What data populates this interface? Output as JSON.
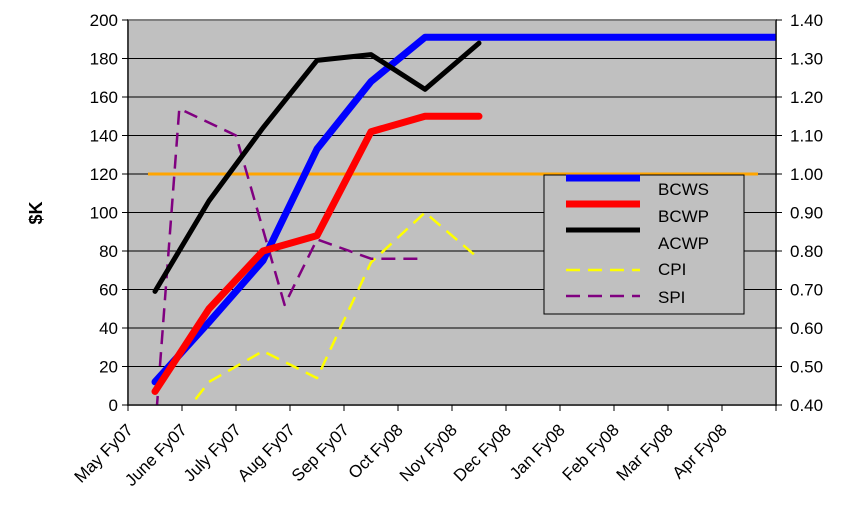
{
  "chart_data": {
    "type": "line",
    "title": "",
    "xlabel": "",
    "ylabel": "$K",
    "ylim": [
      0,
      200
    ],
    "y_ticks": [
      "0",
      "20",
      "40",
      "60",
      "80",
      "100",
      "120",
      "140",
      "160",
      "180",
      "200"
    ],
    "y2lim": [
      0.4,
      1.4
    ],
    "y2_ticks": [
      "0.40",
      "0.50",
      "0.60",
      "0.70",
      "0.80",
      "0.90",
      "1.00",
      "1.10",
      "1.20",
      "1.30",
      "1.40"
    ],
    "categories": [
      "May Fy07",
      "June Fy07",
      "July Fy07",
      "Aug Fy07",
      "Sep Fy07",
      "Oct Fy08",
      "Nov Fy08",
      "Dec Fy08",
      "Jan Fy08",
      "Feb Fy08",
      "Mar Fy08",
      "Apr Fy08"
    ],
    "grid": "horizontal",
    "plot_background": "#c0c0c0",
    "legend_position": "right",
    "series": [
      {
        "name": "BCWS",
        "axis": "left",
        "color": "#0000ff",
        "dash": "solid",
        "width": 7,
        "points": [
          [
            0,
            12
          ],
          [
            1,
            43
          ],
          [
            2,
            75
          ],
          [
            3,
            133
          ],
          [
            4,
            168
          ],
          [
            5,
            191
          ],
          [
            6,
            191
          ],
          [
            7,
            191
          ],
          [
            8,
            191
          ],
          [
            9,
            191
          ],
          [
            10,
            191
          ],
          [
            11,
            191
          ]
        ]
      },
      {
        "name": "BCWP",
        "axis": "left",
        "color": "#ff0000",
        "dash": "solid",
        "width": 7,
        "points": [
          [
            0,
            7
          ],
          [
            1,
            50
          ],
          [
            2,
            80
          ],
          [
            3,
            88
          ],
          [
            4,
            142
          ],
          [
            5,
            150
          ],
          [
            6,
            150
          ]
        ]
      },
      {
        "name": "ACWP",
        "axis": "left",
        "color": "#000000",
        "dash": "solid",
        "width": 5,
        "points": [
          [
            0,
            59
          ],
          [
            1,
            106
          ],
          [
            2,
            144
          ],
          [
            3,
            179
          ],
          [
            4,
            182
          ],
          [
            5,
            164
          ],
          [
            6,
            188
          ]
        ]
      },
      {
        "name": "CPI",
        "axis": "right",
        "color": "#ffff00",
        "dash": "dashed",
        "width": 2.5,
        "points": [
          [
            0.5,
            0.37
          ],
          [
            1,
            0.46
          ],
          [
            2,
            0.54
          ],
          [
            3,
            0.47
          ],
          [
            4,
            0.77
          ],
          [
            5,
            0.9
          ],
          [
            6,
            0.78
          ]
        ]
      },
      {
        "name": "SPI",
        "axis": "right",
        "color": "#800080",
        "dash": "dashed",
        "width": 2.5,
        "points": [
          [
            0,
            0.33
          ],
          [
            0.45,
            1.17
          ],
          [
            1.5,
            1.1
          ],
          [
            2.4,
            0.66
          ],
          [
            3,
            0.83
          ],
          [
            4,
            0.78
          ],
          [
            5,
            0.78
          ]
        ]
      }
    ],
    "reference_line": {
      "axis": "right",
      "value": 1.0,
      "color": "#ffa500"
    }
  }
}
